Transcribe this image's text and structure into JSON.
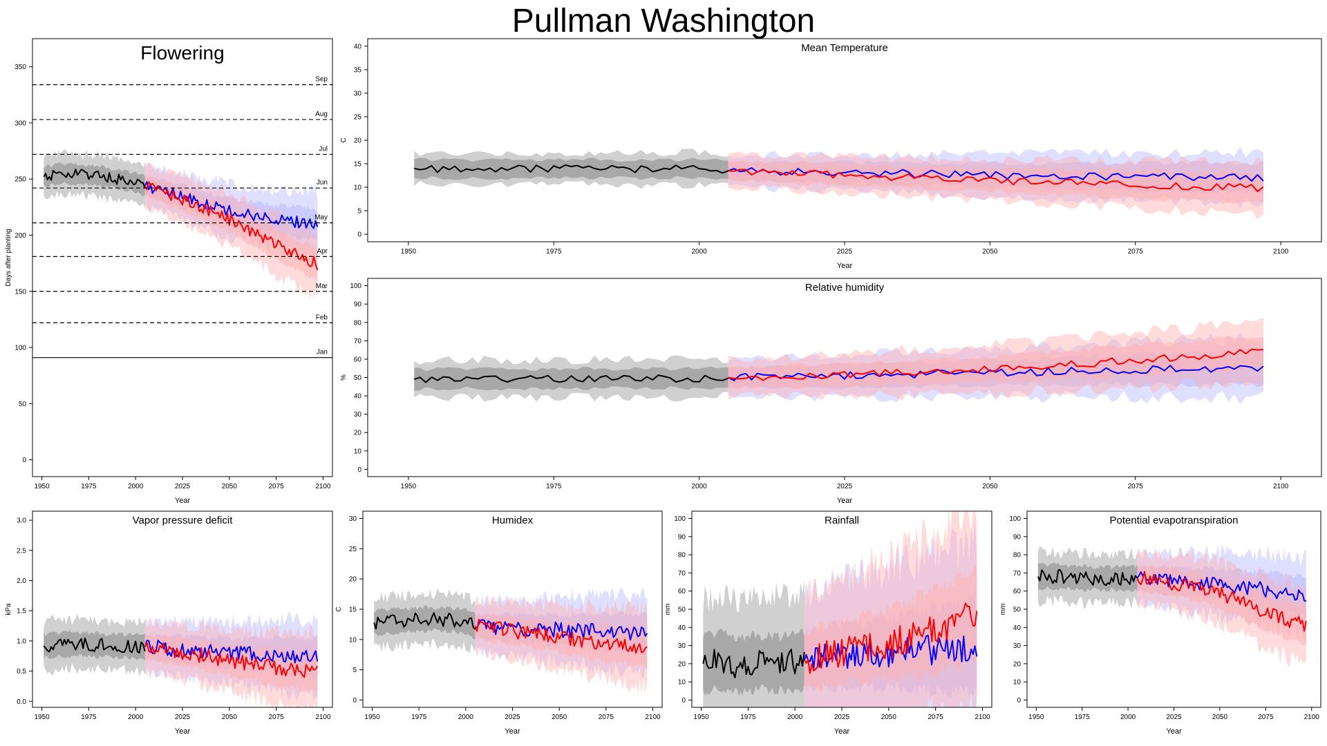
{
  "page": {
    "title": "Pullman Washington"
  },
  "colors": {
    "historical": "#000000",
    "scenario_a": "#0000ff",
    "scenario_b": "#ff0000",
    "band_hist_outer": "#d0d0d0",
    "band_hist_inner": "#a8a8a8",
    "band_a": "#b8b8ff",
    "band_b": "#ffb0b0"
  },
  "chart_data": [
    {
      "id": "flowering",
      "type": "line",
      "title": "Flowering",
      "xlabel": "Year",
      "ylabel": "Days after planting",
      "xlim": [
        1945,
        2105
      ],
      "ylim": [
        -15,
        375
      ],
      "xticks": [
        1950,
        1975,
        2000,
        2025,
        2050,
        2075,
        2100
      ],
      "yticks": [
        0,
        50,
        100,
        150,
        200,
        250,
        300,
        350
      ],
      "reference_lines": [
        {
          "label": "Jan",
          "value": 91,
          "style": "solid"
        },
        {
          "label": "Feb",
          "value": 122,
          "style": "dashed"
        },
        {
          "label": "Mar",
          "value": 150,
          "style": "dashed"
        },
        {
          "label": "Apr",
          "value": 181,
          "style": "dashed"
        },
        {
          "label": "May",
          "value": 211,
          "style": "dashed"
        },
        {
          "label": "Jun",
          "value": 242,
          "style": "dashed"
        },
        {
          "label": "Jul",
          "value": 272,
          "style": "dashed"
        },
        {
          "label": "Aug",
          "value": 303,
          "style": "dashed"
        },
        {
          "label": "Sep",
          "value": 334,
          "style": "dashed"
        }
      ],
      "series": [
        {
          "x": [
            1951,
            1960,
            1970,
            1980,
            1990,
            2000,
            2005
          ],
          "values": [
            252,
            255,
            254,
            253,
            250,
            247,
            244
          ]
        },
        {
          "x": [
            2005,
            2015,
            2025,
            2035,
            2045,
            2055,
            2065,
            2075,
            2085,
            2095,
            2097
          ],
          "values": [
            244,
            240,
            235,
            229,
            224,
            220,
            217,
            214,
            212,
            210,
            208
          ]
        },
        {
          "x": [
            2005,
            2015,
            2025,
            2035,
            2045,
            2055,
            2065,
            2075,
            2085,
            2095,
            2097
          ],
          "values": [
            244,
            238,
            232,
            224,
            218,
            210,
            200,
            192,
            183,
            176,
            173
          ]
        }
      ]
    },
    {
      "id": "mean-temperature",
      "type": "line",
      "title": "Mean Temperature",
      "xlabel": "Year",
      "ylabel": "C",
      "xlim": [
        1943,
        2107
      ],
      "ylim": [
        -1.6,
        41.6
      ],
      "xticks": [
        1950,
        1975,
        2000,
        2025,
        2050,
        2075,
        2100
      ],
      "yticks": [
        0,
        5,
        10,
        15,
        20,
        25,
        30,
        35,
        40
      ],
      "series": [
        {
          "x": [
            1951,
            1960,
            1970,
            1980,
            1990,
            2000,
            2005
          ],
          "values": [
            14,
            13.8,
            13.9,
            14,
            13.8,
            14,
            13.7
          ]
        },
        {
          "x": [
            2005,
            2020,
            2035,
            2050,
            2065,
            2080,
            2097
          ],
          "values": [
            13.5,
            13.2,
            12.9,
            12.6,
            12.4,
            12.2,
            12
          ]
        },
        {
          "x": [
            2005,
            2020,
            2035,
            2050,
            2065,
            2080,
            2097
          ],
          "values": [
            13.5,
            12.9,
            12.2,
            11.5,
            11,
            10.4,
            9.8
          ]
        }
      ]
    },
    {
      "id": "relative-humidity",
      "type": "line",
      "title": "Relative humidity",
      "xlabel": "Year",
      "ylabel": "%",
      "xlim": [
        1943,
        2107
      ],
      "ylim": [
        -4,
        104
      ],
      "xticks": [
        1950,
        1975,
        2000,
        2025,
        2050,
        2075,
        2100
      ],
      "yticks": [
        0,
        10,
        20,
        30,
        40,
        50,
        60,
        70,
        80,
        90,
        100
      ],
      "series": [
        {
          "x": [
            1951,
            1960,
            1970,
            1980,
            1990,
            2000,
            2005
          ],
          "values": [
            49,
            49.5,
            49,
            49.5,
            49.5,
            49.5,
            50
          ]
        },
        {
          "x": [
            2005,
            2020,
            2035,
            2050,
            2065,
            2080,
            2097
          ],
          "values": [
            50,
            50.5,
            51.5,
            52.5,
            53.5,
            54.5,
            55
          ]
        },
        {
          "x": [
            2005,
            2020,
            2035,
            2050,
            2065,
            2080,
            2097
          ],
          "values": [
            50,
            51,
            52.5,
            54.5,
            57.5,
            60.5,
            64
          ]
        }
      ]
    },
    {
      "id": "vapor-pressure-deficit",
      "type": "line",
      "title": "Vapor pressure deficit",
      "xlabel": "Year",
      "ylabel": "kPa",
      "xlim": [
        1945,
        2105
      ],
      "ylim": [
        -0.1,
        3.15
      ],
      "xticks": [
        1950,
        1975,
        2000,
        2025,
        2050,
        2075,
        2100
      ],
      "yticks": [
        0.0,
        0.5,
        1.0,
        1.5,
        2.0,
        2.5,
        3.0
      ],
      "series": [
        {
          "x": [
            1951,
            1960,
            1970,
            1980,
            1990,
            2000,
            2005
          ],
          "values": [
            0.92,
            0.94,
            0.95,
            0.93,
            0.92,
            0.91,
            0.9
          ]
        },
        {
          "x": [
            2005,
            2020,
            2035,
            2050,
            2065,
            2080,
            2097
          ],
          "values": [
            0.9,
            0.87,
            0.84,
            0.8,
            0.78,
            0.75,
            0.72
          ]
        },
        {
          "x": [
            2005,
            2020,
            2035,
            2050,
            2065,
            2080,
            2097
          ],
          "values": [
            0.9,
            0.84,
            0.76,
            0.68,
            0.6,
            0.53,
            0.47
          ]
        }
      ]
    },
    {
      "id": "humidex",
      "type": "line",
      "title": "Humidex",
      "xlabel": "Year",
      "ylabel": "C",
      "xlim": [
        1945,
        2105
      ],
      "ylim": [
        -1.2,
        31.2
      ],
      "xticks": [
        1950,
        1975,
        2000,
        2025,
        2050,
        2075,
        2100
      ],
      "yticks": [
        0,
        5,
        10,
        15,
        20,
        25,
        30
      ],
      "series": [
        {
          "x": [
            1951,
            1960,
            1970,
            1980,
            1990,
            2000,
            2005
          ],
          "values": [
            12.8,
            13,
            13.2,
            13.4,
            13.3,
            13,
            12.2
          ]
        },
        {
          "x": [
            2005,
            2020,
            2035,
            2050,
            2065,
            2080,
            2097
          ],
          "values": [
            12.2,
            12,
            11.8,
            11.6,
            11.4,
            11.2,
            11
          ]
        },
        {
          "x": [
            2005,
            2020,
            2035,
            2050,
            2065,
            2080,
            2097
          ],
          "values": [
            12.2,
            11.6,
            11,
            10.4,
            9.8,
            9.2,
            8.6
          ]
        }
      ]
    },
    {
      "id": "rainfall",
      "type": "line",
      "title": "Rainfall",
      "xlabel": "Year",
      "ylabel": "mm",
      "xlim": [
        1945,
        2105
      ],
      "ylim": [
        -4,
        104
      ],
      "xticks": [
        1950,
        1975,
        2000,
        2025,
        2050,
        2075,
        2100
      ],
      "yticks": [
        0,
        10,
        20,
        30,
        40,
        50,
        60,
        70,
        80,
        90,
        100
      ],
      "series": [
        {
          "x": [
            1951,
            1960,
            1970,
            1980,
            1990,
            2000,
            2005
          ],
          "values": [
            20,
            22,
            19,
            21,
            20,
            21,
            22
          ]
        },
        {
          "x": [
            2005,
            2020,
            2035,
            2050,
            2065,
            2080,
            2097
          ],
          "values": [
            22,
            24,
            25,
            26,
            27,
            28,
            30
          ]
        },
        {
          "x": [
            2005,
            2020,
            2035,
            2050,
            2065,
            2080,
            2097
          ],
          "values": [
            22,
            25,
            28,
            31,
            35,
            40,
            48
          ]
        }
      ]
    },
    {
      "id": "potential-evapotranspiration",
      "type": "line",
      "title": "Potential evapotranspiration",
      "xlabel": "Year",
      "ylabel": "mm",
      "xlim": [
        1945,
        2105
      ],
      "ylim": [
        -4,
        104
      ],
      "xticks": [
        1950,
        1975,
        2000,
        2025,
        2050,
        2075,
        2100
      ],
      "yticks": [
        0,
        10,
        20,
        30,
        40,
        50,
        60,
        70,
        80,
        90,
        100
      ],
      "series": [
        {
          "x": [
            1951,
            1960,
            1970,
            1980,
            1990,
            2000,
            2005
          ],
          "values": [
            68,
            68,
            67.5,
            67,
            67,
            67,
            67
          ]
        },
        {
          "x": [
            2005,
            2020,
            2035,
            2050,
            2065,
            2080,
            2097
          ],
          "values": [
            67,
            66,
            65,
            64,
            62,
            60,
            57
          ]
        },
        {
          "x": [
            2005,
            2020,
            2035,
            2050,
            2065,
            2080,
            2097
          ],
          "values": [
            67,
            65.5,
            63,
            59,
            53,
            46,
            41
          ]
        }
      ]
    }
  ]
}
